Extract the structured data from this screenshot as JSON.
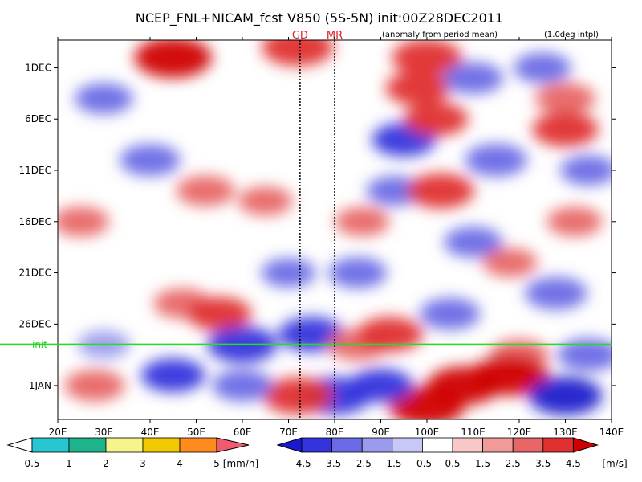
{
  "chart_data": {
    "type": "heatmap",
    "title": "NCEP_FNL+NICAM_fcst V850 (5S-5N) init:00Z28DEC2011",
    "annotation_anomaly": "(anomaly from period mean)",
    "annotation_interp": "(1.0deg intpl)",
    "xlabel": "",
    "ylabel": "",
    "x_ticks": [
      "20E",
      "30E",
      "40E",
      "50E",
      "60E",
      "70E",
      "80E",
      "90E",
      "100E",
      "110E",
      "120E",
      "130E",
      "140E"
    ],
    "x_range": [
      20,
      140
    ],
    "y_ticks": [
      "1DEC",
      "6DEC",
      "11DEC",
      "16DEC",
      "21DEC",
      "26DEC",
      "1JAN"
    ],
    "y_tick_days": [
      0,
      5,
      10,
      15,
      20,
      25,
      31
    ],
    "y_range_days": [
      -2.7,
      34.3
    ],
    "init_label": "init",
    "init_day": 27,
    "markers": [
      {
        "label": "GD",
        "lon": 72.5
      },
      {
        "label": "MR",
        "lon": 80
      }
    ],
    "grid": true,
    "precip_colorbar": {
      "ticks": [
        "0.5",
        "1",
        "2",
        "3",
        "4",
        "5"
      ],
      "unit": "[mm/h]",
      "colors": [
        "#26c6d2",
        "#1fb38c",
        "#f5f58c",
        "#f2c800",
        "#ff8a1e",
        "#f05c6e"
      ]
    },
    "wind_colorbar": {
      "ticks": [
        "-4.5",
        "-3.5",
        "-2.5",
        "-1.5",
        "-0.5",
        "0.5",
        "1.5",
        "2.5",
        "3.5",
        "4.5"
      ],
      "unit": "[m/s]",
      "colors": [
        "#1a1acc",
        "#3333dd",
        "#6a6ae6",
        "#9b9bee",
        "#c8c8f6",
        "#ffffff",
        "#f8c8c8",
        "#f09a9a",
        "#e86666",
        "#e03030",
        "#d00000"
      ]
    },
    "series": [
      {
        "name": "",
        "values": [
          {
            "lon": 25,
            "day": 15,
            "v": 2.2
          },
          {
            "lon": 40,
            "day": 9,
            "v": -2.6
          },
          {
            "lon": 47,
            "day": 23,
            "v": 2.3
          },
          {
            "lon": 55,
            "day": 24,
            "v": 3.0
          },
          {
            "lon": 65,
            "day": 13,
            "v": 2.0
          },
          {
            "lon": 52,
            "day": 12,
            "v": 2.4
          },
          {
            "lon": 60,
            "day": 27,
            "v": -3.6
          },
          {
            "lon": 75,
            "day": 26,
            "v": -3.2
          },
          {
            "lon": 85,
            "day": 27,
            "v": 2.6
          },
          {
            "lon": 92,
            "day": 26,
            "v": 3.2
          },
          {
            "lon": 95,
            "day": 7,
            "v": -3.0
          },
          {
            "lon": 93,
            "day": 12,
            "v": -2.2
          },
          {
            "lon": 86,
            "day": 15,
            "v": 2.0
          },
          {
            "lon": 103,
            "day": 12,
            "v": 3.3
          },
          {
            "lon": 115,
            "day": 9,
            "v": -2.8
          },
          {
            "lon": 102,
            "day": 5,
            "v": 3.0
          },
          {
            "lon": 130,
            "day": 3,
            "v": 2.6
          },
          {
            "lon": 125,
            "day": 0,
            "v": -2.3
          },
          {
            "lon": 130,
            "day": 6,
            "v": 3.2
          },
          {
            "lon": 135,
            "day": 10,
            "v": -2.2
          },
          {
            "lon": 110,
            "day": 17,
            "v": -2.4
          },
          {
            "lon": 118,
            "day": 19,
            "v": 2.0
          },
          {
            "lon": 128,
            "day": 22,
            "v": -2.8
          },
          {
            "lon": 132,
            "day": 15,
            "v": 2.1
          },
          {
            "lon": 105,
            "day": 24,
            "v": -2.6
          },
          {
            "lon": 120,
            "day": 28,
            "v": 2.4
          },
          {
            "lon": 135,
            "day": 28,
            "v": -2.8
          },
          {
            "lon": 108,
            "day": 31,
            "v": 4.0
          },
          {
            "lon": 118,
            "day": 30,
            "v": 4.4
          },
          {
            "lon": 100,
            "day": 33,
            "v": 4.2
          },
          {
            "lon": 80,
            "day": 32,
            "v": -3.8
          },
          {
            "lon": 90,
            "day": 31,
            "v": -3.0
          },
          {
            "lon": 130,
            "day": 32,
            "v": -4.0
          },
          {
            "lon": 72,
            "day": 32,
            "v": 3.6
          },
          {
            "lon": 45,
            "day": 30,
            "v": -3.0
          },
          {
            "lon": 60,
            "day": 31,
            "v": -2.6
          },
          {
            "lon": 28,
            "day": 31,
            "v": 2.6
          },
          {
            "lon": 30,
            "day": 27,
            "v": -1.8
          },
          {
            "lon": 45,
            "day": -1,
            "v": 4.4
          },
          {
            "lon": 72,
            "day": -2,
            "v": 3.8
          },
          {
            "lon": 100,
            "day": -1,
            "v": 3.6
          },
          {
            "lon": 98,
            "day": 2,
            "v": 3.0
          },
          {
            "lon": 110,
            "day": 1,
            "v": -2.6
          },
          {
            "lon": 30,
            "day": 3,
            "v": -2.4
          },
          {
            "lon": 85,
            "day": 20,
            "v": -2.4
          },
          {
            "lon": 70,
            "day": 20,
            "v": -2.0
          }
        ]
      }
    ]
  }
}
